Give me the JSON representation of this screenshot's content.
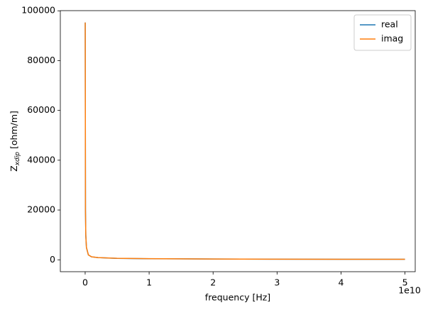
{
  "chart_data": {
    "type": "line",
    "xlabel": "frequency [Hz]",
    "ylabel": {
      "symbol": "Z",
      "subscript": "xdip",
      "unit": "[ohm/m]"
    },
    "x_offset_label": "1e10",
    "x": [
      10000000,
      50000000,
      100000000,
      200000000,
      500000000,
      1000000000,
      2000000000,
      5000000000,
      10000000000,
      20000000000,
      30000000000,
      40000000000,
      50000000000
    ],
    "series": [
      {
        "name": "real",
        "color": "#1f77b4",
        "values": [
          95300,
          19800,
          9900,
          4950,
          1980,
          1190,
          890,
          590,
          445,
          318,
          258,
          218,
          198
        ]
      },
      {
        "name": "imag",
        "color": "#ff7f0e",
        "values": [
          95300,
          20000,
          10000,
          5000,
          2000,
          1200,
          900,
          600,
          450,
          320,
          260,
          220,
          200
        ]
      }
    ],
    "xlim": [
      -3880000000,
      51600000000
    ],
    "ylim": [
      -4770,
      100070
    ],
    "xticks": [
      0,
      {
        "value": 10000000000,
        "label": "1"
      },
      {
        "value": 20000000000,
        "label": "2"
      },
      {
        "value": 30000000000,
        "label": "3"
      },
      {
        "value": 40000000000,
        "label": "4"
      },
      {
        "value": 50000000000,
        "label": "5"
      }
    ],
    "yticks": [
      0,
      20000,
      40000,
      60000,
      80000,
      100000
    ],
    "grid": false,
    "legend": "upper-right"
  }
}
